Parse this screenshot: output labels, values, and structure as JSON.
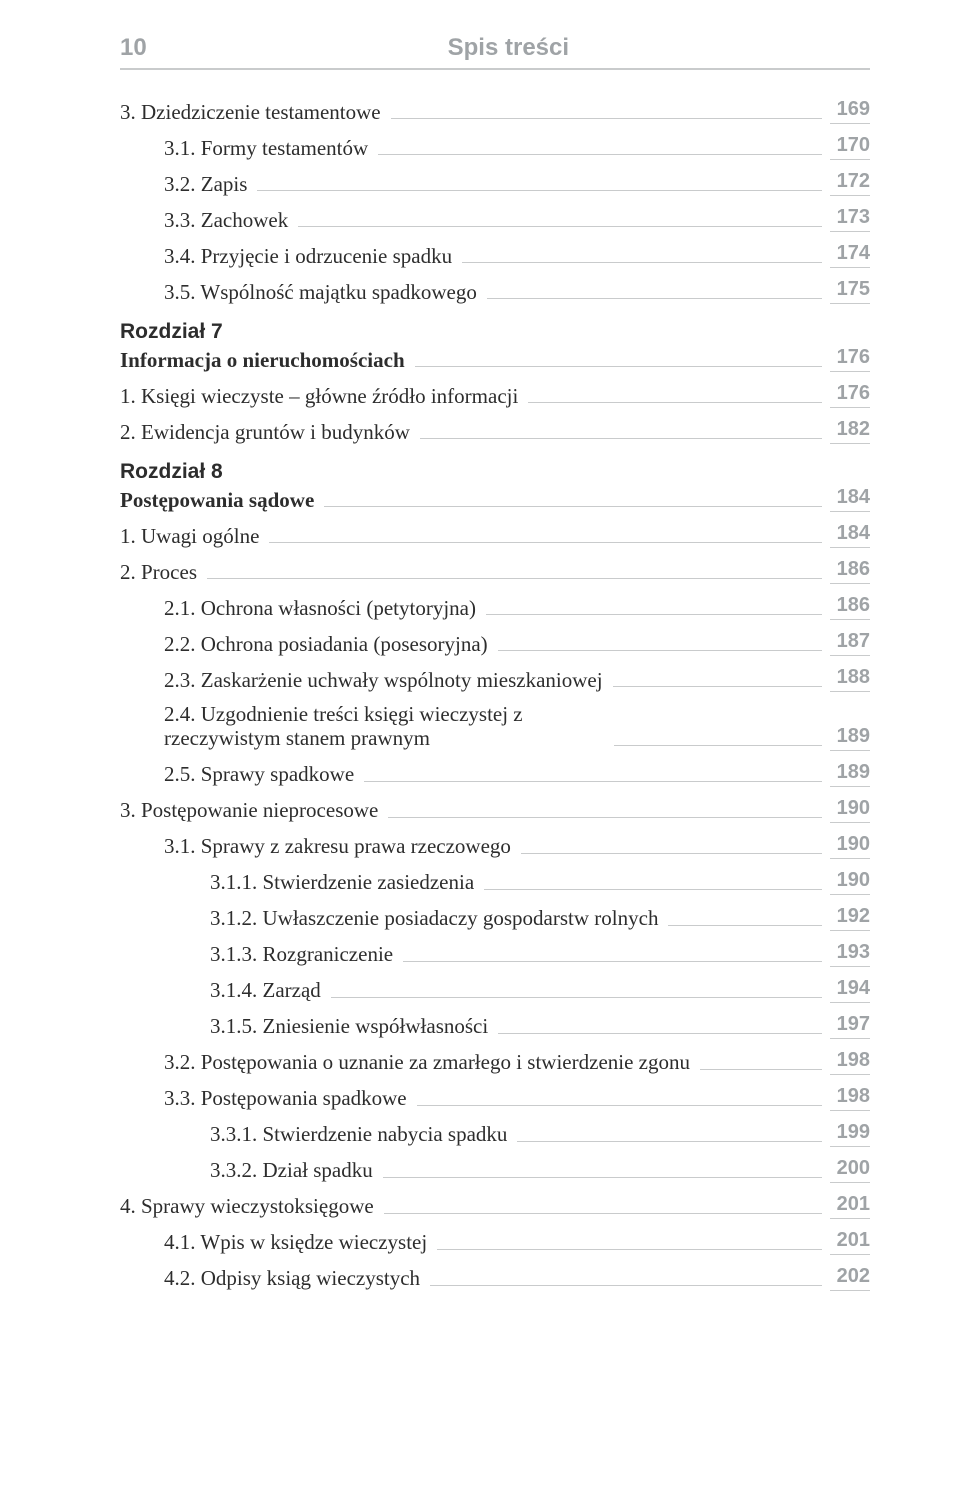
{
  "page_number": "10",
  "header_title": "Spis treści",
  "colors": {
    "header_text": "#9fa3a6",
    "leader_line": "#c9cbcc",
    "body_text": "#2d2d2d",
    "background": "#ffffff"
  },
  "entries": [
    {
      "level": 0,
      "label": "3. Dziedziczenie testamentowe",
      "page": "169"
    },
    {
      "level": 1,
      "label": "3.1. Formy testamentów",
      "page": "170"
    },
    {
      "level": 1,
      "label": "3.2. Zapis",
      "page": "172"
    },
    {
      "level": 1,
      "label": "3.3. Zachowek",
      "page": "173"
    },
    {
      "level": 1,
      "label": "3.4. Przyjęcie i odrzucenie spadku",
      "page": "174"
    },
    {
      "level": 1,
      "label": "3.5. Wspólność majątku spadkowego",
      "page": "175"
    },
    {
      "chapter_block": true,
      "chapter": "Rozdział 7",
      "title": "Informacja o nieruchomościach",
      "page": "176"
    },
    {
      "level": 0,
      "label": "1. Księgi wieczyste – główne źródło informacji",
      "page": "176"
    },
    {
      "level": 0,
      "label": "2. Ewidencja gruntów i budynków",
      "page": "182"
    },
    {
      "chapter_block": true,
      "chapter": "Rozdział 8",
      "title": "Postępowania sądowe",
      "page": "184"
    },
    {
      "level": 0,
      "label": "1. Uwagi ogólne",
      "page": "184"
    },
    {
      "level": 0,
      "label": "2. Proces",
      "page": "186"
    },
    {
      "level": 1,
      "label": "2.1. Ochrona własności (petytoryjna)",
      "page": "186"
    },
    {
      "level": 1,
      "label": "2.2. Ochrona posiadania (posesoryjna)",
      "page": "187"
    },
    {
      "level": 1,
      "label": "2.3. Zaskarżenie uchwały wspólnoty mieszkaniowej",
      "page": "188"
    },
    {
      "level": 1,
      "multiline": true,
      "label": "2.4. Uzgodnienie treści księgi wieczystej z rzeczywistym stanem prawnym",
      "page": "189"
    },
    {
      "level": 1,
      "label": "2.5. Sprawy spadkowe",
      "page": "189"
    },
    {
      "level": 0,
      "label": "3. Postępowanie nieprocesowe",
      "page": "190"
    },
    {
      "level": 1,
      "label": "3.1. Sprawy z zakresu prawa rzeczowego",
      "page": "190"
    },
    {
      "level": 2,
      "label": "3.1.1. Stwierdzenie zasiedzenia",
      "page": "190"
    },
    {
      "level": 2,
      "label": "3.1.2. Uwłaszczenie posiadaczy gospodarstw rolnych",
      "page": "192"
    },
    {
      "level": 2,
      "label": "3.1.3. Rozgraniczenie",
      "page": "193"
    },
    {
      "level": 2,
      "label": "3.1.4. Zarząd",
      "page": "194"
    },
    {
      "level": 2,
      "label": "3.1.5. Zniesienie współwłasności",
      "page": "197"
    },
    {
      "level": 1,
      "label": "3.2. Postępowania o uznanie za zmarłego i stwierdzenie zgonu",
      "page": "198"
    },
    {
      "level": 1,
      "label": "3.3. Postępowania spadkowe",
      "page": "198"
    },
    {
      "level": 2,
      "label": "3.3.1. Stwierdzenie nabycia spadku",
      "page": "199"
    },
    {
      "level": 2,
      "label": "3.3.2. Dział spadku",
      "page": "200"
    },
    {
      "level": 0,
      "label": "4.  Sprawy wieczystoksięgowe",
      "page": "201"
    },
    {
      "level": 1,
      "label": "4.1. Wpis w księdze wieczystej",
      "page": "201"
    },
    {
      "level": 1,
      "label": "4.2. Odpisy ksiąg wieczystych",
      "page": "202"
    }
  ]
}
